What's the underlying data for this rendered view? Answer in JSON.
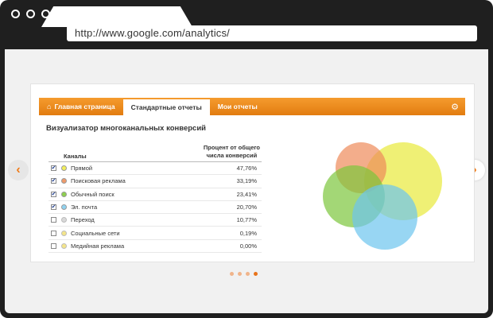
{
  "browser": {
    "url": "http://www.google.com/analytics/"
  },
  "nav": {
    "items": [
      {
        "label": "Главная страница",
        "icon": "home-icon",
        "active": false
      },
      {
        "label": "Стандартные отчеты",
        "active": true
      },
      {
        "label": "Мои отчеты",
        "active": false
      }
    ]
  },
  "card": {
    "title": "Визуализатор многоканальных конверсий"
  },
  "table": {
    "col_channels": "Каналы",
    "col_percent_line1": "Процент от общего",
    "col_percent_line2": "числа конверсий",
    "rows": [
      {
        "name": "Прямой",
        "value": "47,76%",
        "checked": true,
        "color": "#f2ef5a"
      },
      {
        "name": "Поисковая реклама",
        "value": "33,19%",
        "checked": true,
        "color": "#f09a6a"
      },
      {
        "name": "Обычный поиск",
        "value": "23,41%",
        "checked": true,
        "color": "#8ed04e"
      },
      {
        "name": "Эл. почта",
        "value": "20,70%",
        "checked": true,
        "color": "#8fd3f1"
      },
      {
        "name": "Переход",
        "value": "10,77%",
        "checked": false,
        "color": "#d9d9d9"
      },
      {
        "name": "Социальные сети",
        "value": "0,19%",
        "checked": false,
        "color": "#f4e58a"
      },
      {
        "name": "Медийная реклама",
        "value": "0,00%",
        "checked": false,
        "color": "#f4e58a"
      }
    ]
  },
  "colors": {
    "accent": "#f07c1a",
    "venn_yellow": "#e8ea3a",
    "venn_orange": "#ee8a5a",
    "venn_green": "#7cc63c",
    "venn_blue": "#6cc4ee"
  },
  "pager": {
    "count": 4,
    "active_index": 3
  }
}
